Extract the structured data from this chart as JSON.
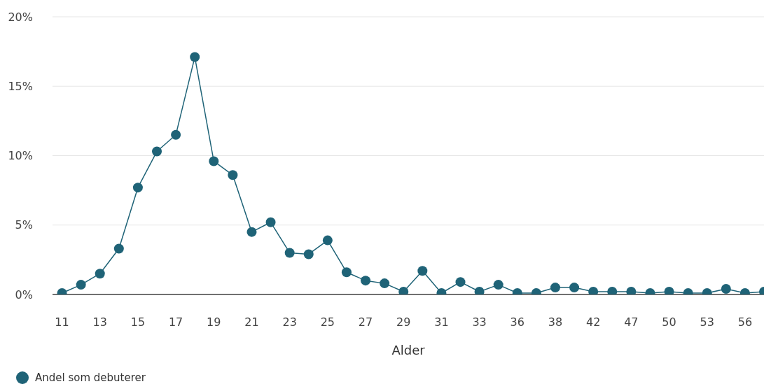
{
  "chart_data": {
    "type": "line",
    "xlabel": "Alder",
    "categories": [
      "11",
      null,
      "13",
      null,
      "15",
      null,
      "17",
      null,
      "19",
      null,
      "21",
      null,
      "23",
      null,
      "25",
      null,
      "27",
      null,
      "29",
      null,
      "31",
      null,
      "33",
      null,
      "36",
      null,
      "38",
      null,
      "42",
      null,
      "47",
      null,
      "50",
      null,
      "53",
      null,
      "56",
      null
    ],
    "series": [
      {
        "name": "Andel som debuterer",
        "color": "#1f6377",
        "values": [
          0.1,
          0.7,
          1.5,
          3.3,
          7.7,
          10.3,
          11.5,
          17.1,
          9.6,
          8.6,
          4.5,
          5.2,
          3.0,
          2.9,
          3.9,
          1.6,
          1.0,
          0.8,
          0.2,
          1.7,
          0.1,
          0.9,
          0.2,
          0.7,
          0.1,
          0.1,
          0.5,
          0.5,
          0.2,
          0.2,
          0.2,
          0.1,
          0.2,
          0.1,
          0.1,
          0.4,
          0.1,
          0.2
        ]
      }
    ],
    "ylim": [
      0,
      20
    ],
    "yticks": [
      {
        "value": 0,
        "label": "0%"
      },
      {
        "value": 5,
        "label": "5%"
      },
      {
        "value": 10,
        "label": "10%"
      },
      {
        "value": 15,
        "label": "15%"
      },
      {
        "value": 20,
        "label": "20%"
      }
    ],
    "grid": "y",
    "legend": "bottom left",
    "marker": "circle",
    "line_style": "solid"
  }
}
